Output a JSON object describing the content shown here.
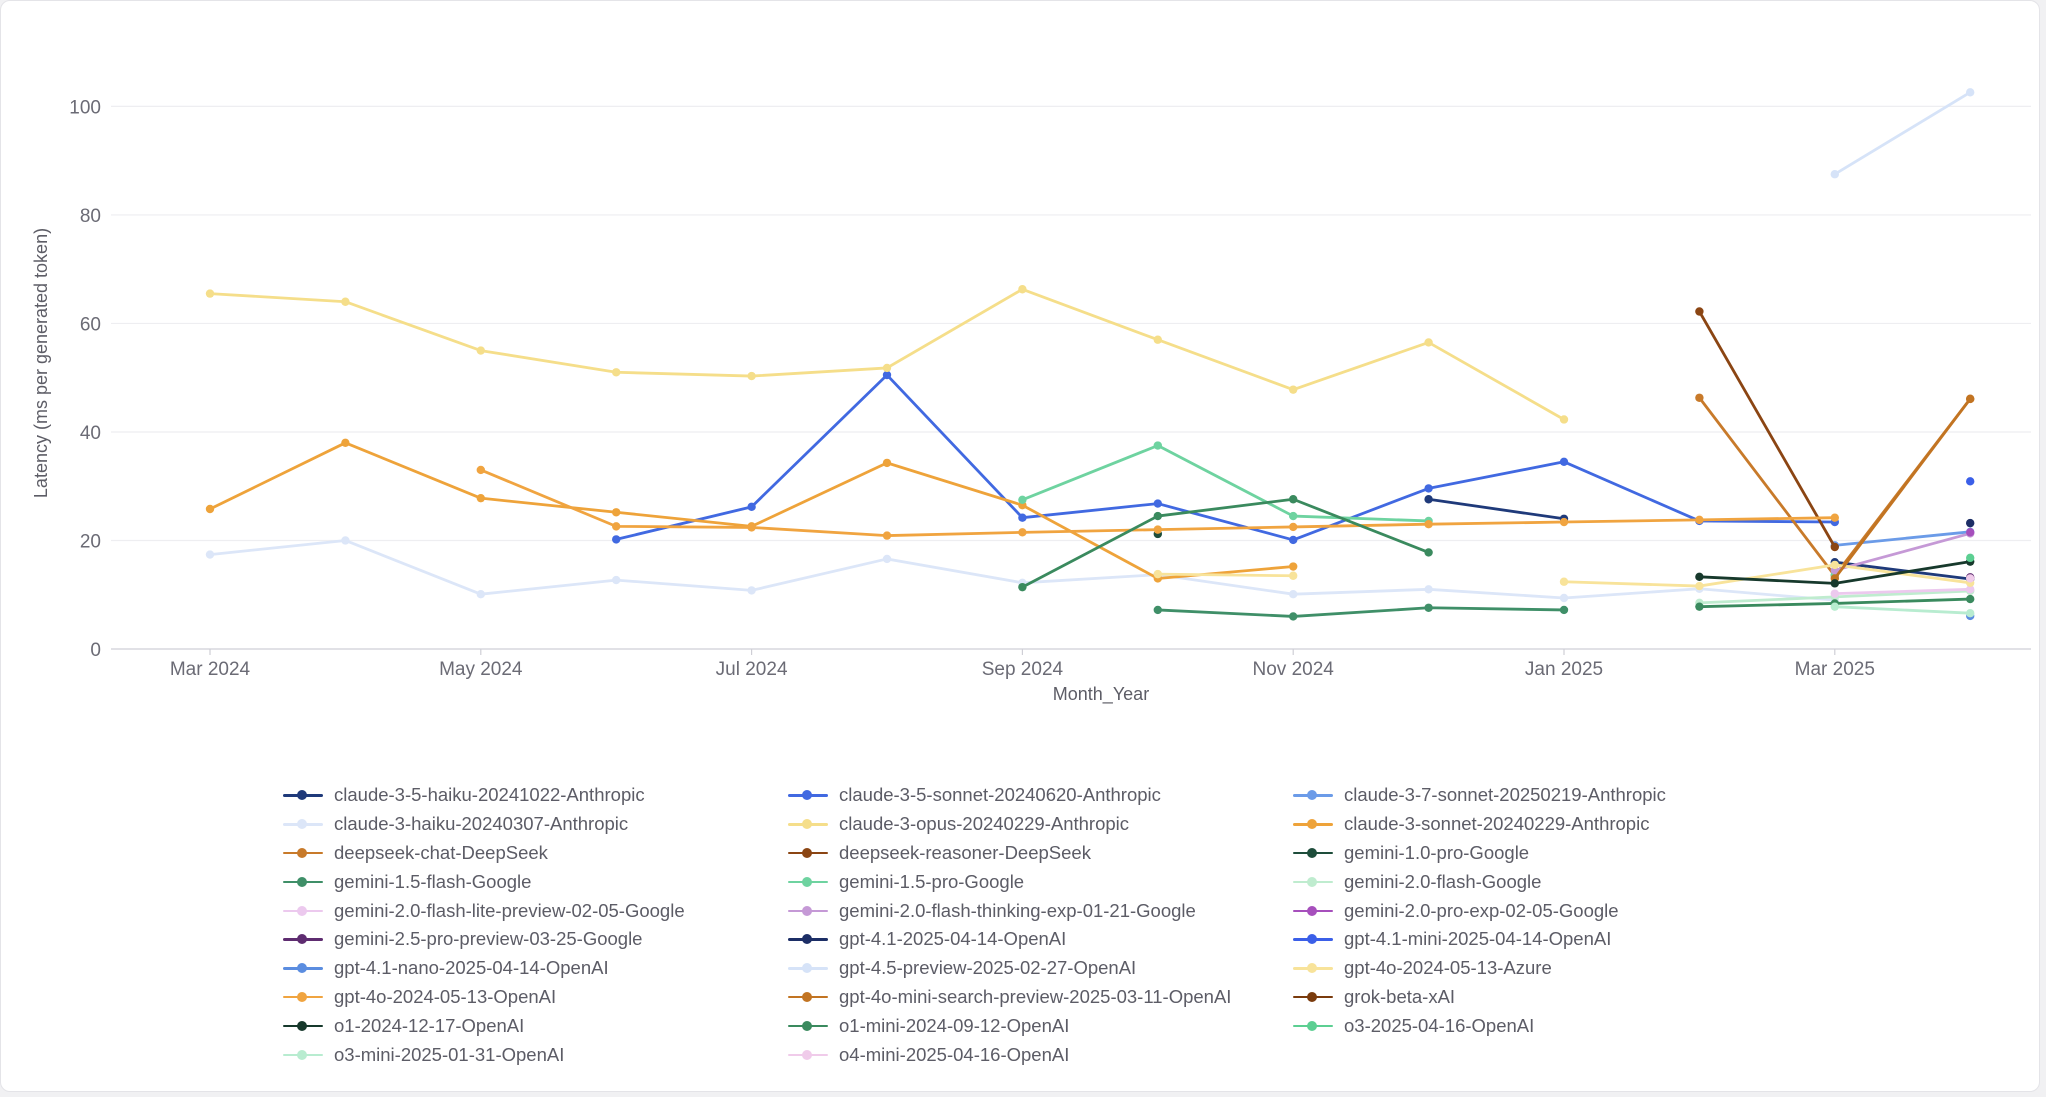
{
  "chart_data": {
    "type": "line",
    "title": "",
    "xlabel": "Month_Year",
    "ylabel": "Latency (ms per generated token)",
    "ylim": [
      0,
      108
    ],
    "yticks": [
      0,
      20,
      40,
      60,
      80,
      100
    ],
    "x": [
      "2024-03",
      "2024-04",
      "2024-05",
      "2024-06",
      "2024-07",
      "2024-08",
      "2024-09",
      "2024-10",
      "2024-11",
      "2024-12",
      "2025-01",
      "2025-02",
      "2025-03",
      "2025-04"
    ],
    "xticks": [
      {
        "x": "2024-03",
        "label": "Mar 2024"
      },
      {
        "x": "2024-05",
        "label": "May 2024"
      },
      {
        "x": "2024-07",
        "label": "Jul 2024"
      },
      {
        "x": "2024-09",
        "label": "Sep 2024"
      },
      {
        "x": "2024-11",
        "label": "Nov 2024"
      },
      {
        "x": "2025-01",
        "label": "Jan 2025"
      },
      {
        "x": "2025-03",
        "label": "Mar 2025"
      }
    ],
    "grid": true,
    "legend": "bottom",
    "series": [
      {
        "name": "claude-3-5-haiku-20241022-Anthropic",
        "color": "#1f3a7a",
        "values": [
          null,
          null,
          null,
          null,
          null,
          null,
          null,
          null,
          null,
          27.6,
          24.0,
          null,
          16.0,
          12.9
        ]
      },
      {
        "name": "claude-3-5-sonnet-20240620-Anthropic",
        "color": "#4169e1",
        "values": [
          null,
          null,
          null,
          20.2,
          26.2,
          50.5,
          24.2,
          26.8,
          20.1,
          29.6,
          34.5,
          23.6,
          23.4,
          null
        ]
      },
      {
        "name": "claude-3-7-sonnet-20250219-Anthropic",
        "color": "#6b9be8",
        "values": [
          null,
          null,
          null,
          null,
          null,
          null,
          null,
          null,
          null,
          null,
          null,
          null,
          19.1,
          21.6
        ]
      },
      {
        "name": "claude-3-haiku-20240307-Anthropic",
        "color": "#dce6f8",
        "values": [
          17.4,
          20.0,
          10.1,
          12.7,
          10.8,
          16.6,
          12.2,
          13.7,
          10.1,
          11.0,
          9.4,
          11.1,
          9.0,
          null
        ]
      },
      {
        "name": "claude-3-opus-20240229-Anthropic",
        "color": "#f5de8a",
        "values": [
          65.5,
          64.0,
          55.0,
          51.0,
          50.3,
          51.8,
          66.3,
          57.0,
          47.8,
          56.5,
          42.3,
          null,
          null,
          null
        ]
      },
      {
        "name": "claude-3-sonnet-20240229-Anthropic",
        "color": "#eea33a",
        "values": [
          25.8,
          38.0,
          27.8,
          25.2,
          22.6,
          34.3,
          26.5,
          13.0,
          15.2,
          null,
          null,
          null,
          null,
          null
        ]
      },
      {
        "name": "deepseek-chat-DeepSeek",
        "color": "#c87a2a",
        "values": [
          null,
          null,
          null,
          null,
          null,
          null,
          null,
          null,
          null,
          null,
          null,
          46.3,
          13.5,
          46.1
        ]
      },
      {
        "name": "deepseek-reasoner-DeepSeek",
        "color": "#8b4513",
        "values": [
          null,
          null,
          null,
          null,
          null,
          null,
          null,
          null,
          null,
          null,
          null,
          62.2,
          18.8,
          null
        ]
      },
      {
        "name": "gemini-1.0-pro-Google",
        "color": "#1e4d3b",
        "values": [
          null,
          null,
          null,
          null,
          null,
          null,
          null,
          21.2,
          null,
          null,
          null,
          null,
          null,
          null
        ]
      },
      {
        "name": "gemini-1.5-flash-Google",
        "color": "#3f8f68",
        "values": [
          null,
          null,
          null,
          null,
          null,
          null,
          null,
          7.2,
          6.0,
          7.6,
          7.2,
          null,
          null,
          null
        ]
      },
      {
        "name": "gemini-1.5-pro-Google",
        "color": "#6ed3a0",
        "values": [
          null,
          null,
          null,
          null,
          null,
          null,
          27.5,
          37.5,
          24.5,
          23.6,
          null,
          null,
          13.7,
          null
        ]
      },
      {
        "name": "gemini-2.0-flash-Google",
        "color": "#bfeccf",
        "values": [
          null,
          null,
          null,
          null,
          null,
          null,
          null,
          null,
          null,
          null,
          null,
          8.5,
          9.6,
          10.7
        ]
      },
      {
        "name": "gemini-2.0-flash-lite-preview-02-05-Google",
        "color": "#ecc9ee",
        "values": [
          null,
          null,
          null,
          null,
          null,
          null,
          null,
          null,
          null,
          null,
          null,
          null,
          10.2,
          11.0
        ]
      },
      {
        "name": "gemini-2.0-flash-thinking-exp-01-21-Google",
        "color": "#c599d6",
        "values": [
          null,
          null,
          null,
          null,
          null,
          null,
          null,
          null,
          null,
          null,
          null,
          null,
          14.5,
          21.3
        ]
      },
      {
        "name": "gemini-2.0-pro-exp-02-05-Google",
        "color": "#a64fbc",
        "values": [
          null,
          null,
          null,
          null,
          null,
          null,
          null,
          null,
          null,
          null,
          null,
          null,
          null,
          21.5
        ]
      },
      {
        "name": "gemini-2.5-pro-preview-03-25-Google",
        "color": "#5e2c70",
        "values": [
          null,
          null,
          null,
          null,
          null,
          null,
          null,
          null,
          null,
          null,
          null,
          null,
          null,
          13.2
        ]
      },
      {
        "name": "gpt-4.1-2025-04-14-OpenAI",
        "color": "#1c2e66",
        "values": [
          null,
          null,
          null,
          null,
          null,
          null,
          null,
          null,
          null,
          null,
          null,
          null,
          null,
          23.2
        ]
      },
      {
        "name": "gpt-4.1-mini-2025-04-14-OpenAI",
        "color": "#3b5fe8",
        "values": [
          null,
          null,
          null,
          null,
          null,
          null,
          null,
          null,
          null,
          null,
          null,
          null,
          null,
          30.9
        ]
      },
      {
        "name": "gpt-4.1-nano-2025-04-14-OpenAI",
        "color": "#5b8de0",
        "values": [
          null,
          null,
          null,
          null,
          null,
          null,
          null,
          null,
          null,
          null,
          null,
          null,
          null,
          6.1
        ]
      },
      {
        "name": "gpt-4.5-preview-2025-02-27-OpenAI",
        "color": "#d6e3f8",
        "values": [
          null,
          null,
          null,
          null,
          null,
          null,
          null,
          null,
          null,
          null,
          null,
          null,
          87.5,
          102.6
        ]
      },
      {
        "name": "gpt-4o-2024-05-13-Azure",
        "color": "#f8e39a",
        "values": [
          null,
          null,
          null,
          null,
          null,
          null,
          null,
          13.8,
          13.5,
          null,
          12.4,
          11.6,
          15.5,
          12.2
        ]
      },
      {
        "name": "gpt-4o-2024-05-13-OpenAI",
        "color": "#f0a440",
        "values": [
          null,
          null,
          33.0,
          22.6,
          22.4,
          20.9,
          21.5,
          22.0,
          22.5,
          23.0,
          23.4,
          23.8,
          24.2,
          null
        ]
      },
      {
        "name": "gpt-4o-mini-search-preview-2025-03-11-OpenAI",
        "color": "#c27422",
        "values": [
          null,
          null,
          null,
          null,
          null,
          null,
          null,
          null,
          null,
          null,
          null,
          null,
          13.0,
          46.1
        ]
      },
      {
        "name": "grok-beta-xAI",
        "color": "#7a3b0d",
        "values": [
          null,
          null,
          null,
          null,
          null,
          null,
          null,
          null,
          null,
          null,
          null,
          null,
          null,
          null
        ]
      },
      {
        "name": "o1-2024-12-17-OpenAI",
        "color": "#17392c",
        "values": [
          null,
          null,
          null,
          null,
          null,
          null,
          null,
          null,
          null,
          null,
          null,
          13.3,
          12.1,
          16.1
        ]
      },
      {
        "name": "o1-mini-2024-09-12-OpenAI",
        "color": "#3a8a5e",
        "values": [
          null,
          null,
          null,
          null,
          null,
          null,
          11.4,
          24.5,
          27.6,
          17.8,
          null,
          7.8,
          8.4,
          9.2
        ]
      },
      {
        "name": "o3-2025-04-16-OpenAI",
        "color": "#5ccf92",
        "values": [
          null,
          null,
          null,
          null,
          null,
          null,
          null,
          null,
          null,
          null,
          null,
          null,
          null,
          16.8
        ]
      },
      {
        "name": "o3-mini-2025-01-31-OpenAI",
        "color": "#b8ecd0",
        "values": [
          null,
          null,
          null,
          null,
          null,
          null,
          null,
          null,
          null,
          null,
          null,
          null,
          7.8,
          6.6
        ]
      },
      {
        "name": "o4-mini-2025-04-16-OpenAI",
        "color": "#f0cbea",
        "values": [
          null,
          null,
          null,
          null,
          null,
          null,
          null,
          null,
          null,
          null,
          null,
          null,
          null,
          13.0
        ]
      }
    ]
  }
}
